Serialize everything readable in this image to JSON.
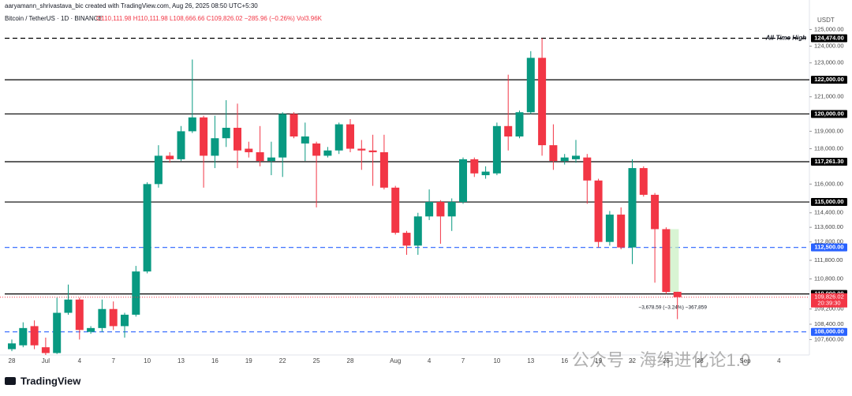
{
  "chart_data": {
    "type": "candlestick",
    "header": {
      "creator": "aaryamann_shrivastava_bic created with TradingView.com, Aug 26, 2025 08:50 UTC+5:30",
      "symbol": "Bitcoin / TetherUS · 1D · BINANCE",
      "ohlc": "O110,111.98 H110,111.98 L108,666.66 C109,826.02 −285.96 (−0.26%) Vol3.96K"
    },
    "currency": "USDT",
    "log_scale": true,
    "up_color": "#089981",
    "down_color": "#f23645",
    "categories": [
      "28",
      null,
      null,
      "Jul",
      null,
      null,
      "4",
      null,
      null,
      "7",
      null,
      null,
      "10",
      null,
      null,
      "13",
      null,
      null,
      "16",
      null,
      null,
      "19",
      null,
      null,
      "22",
      null,
      null,
      "25",
      null,
      null,
      "28",
      null,
      null,
      null,
      "Aug",
      null,
      null,
      "4",
      null,
      null,
      "7",
      null,
      null,
      "10",
      null,
      null,
      "13",
      null,
      null,
      "16",
      null,
      null,
      "19",
      null,
      null,
      "22",
      null,
      null,
      "25",
      null,
      null,
      "28",
      null,
      null,
      null,
      "Sep",
      null,
      null,
      "4"
    ],
    "open": [
      107100,
      107300,
      108300,
      107200,
      106900,
      109000,
      109700,
      108000,
      108200,
      109200,
      108300,
      108900,
      111200,
      116000,
      117600,
      117400,
      119000,
      119800,
      117600,
      118600,
      119200,
      118000,
      117800,
      117300,
      117500,
      120000,
      118300,
      118300,
      117600,
      117900,
      119400,
      118000,
      117900,
      117800,
      115800,
      113300,
      112600,
      114200,
      115000,
      114200,
      115000,
      117400,
      116500,
      116600,
      119300,
      118700,
      120100,
      123300,
      118200,
      117300,
      117400,
      117500,
      116200,
      112800,
      114300,
      112500,
      116900,
      115400,
      113500,
      110111.98,
      null,
      null,
      null,
      null,
      null,
      null,
      null,
      null,
      null
    ],
    "high": [
      107600,
      108500,
      108600,
      107700,
      109800,
      110500,
      109800,
      108300,
      109700,
      109600,
      109000,
      111500,
      116100,
      118200,
      117800,
      119300,
      123200,
      119900,
      119900,
      120800,
      120600,
      118400,
      119300,
      118400,
      120100,
      120100,
      119500,
      118400,
      118100,
      119500,
      119700,
      118500,
      118800,
      118800,
      115900,
      113400,
      114400,
      115700,
      115100,
      115200,
      117500,
      117500,
      117000,
      119500,
      122300,
      120200,
      123700,
      124474,
      119400,
      117700,
      118500,
      117700,
      116300,
      114500,
      114700,
      117400,
      117000,
      115500,
      113600,
      110111.98,
      null,
      null,
      null,
      null,
      null,
      null,
      null,
      null,
      null
    ],
    "low": [
      107000,
      107200,
      107100,
      106800,
      106850,
      108900,
      107600,
      107900,
      108000,
      108100,
      107700,
      108800,
      111100,
      115800,
      117200,
      117300,
      118900,
      115800,
      116900,
      118100,
      116900,
      117500,
      117000,
      116500,
      116400,
      118600,
      117300,
      114700,
      117500,
      117700,
      117800,
      116800,
      115900,
      115700,
      113200,
      112100,
      112100,
      114000,
      112700,
      113400,
      114900,
      116400,
      116300,
      116500,
      117900,
      118600,
      120000,
      117600,
      116800,
      117100,
      117200,
      114900,
      112500,
      112600,
      112400,
      111600,
      115300,
      110600,
      110000,
      108666.66,
      null,
      null,
      null,
      null,
      null,
      null,
      null,
      null,
      null
    ],
    "close": [
      107400,
      108200,
      107300,
      106900,
      109000,
      109700,
      108100,
      108200,
      109200,
      108300,
      108900,
      111200,
      116000,
      117600,
      117400,
      119000,
      119800,
      117600,
      118600,
      119200,
      117900,
      117800,
      117300,
      117500,
      120000,
      118700,
      118700,
      117600,
      117900,
      119400,
      118000,
      117900,
      117800,
      115800,
      113300,
      112600,
      114200,
      115000,
      114200,
      115000,
      117400,
      116600,
      116700,
      119300,
      118700,
      120100,
      123300,
      118200,
      117300,
      117500,
      117600,
      116200,
      112800,
      114300,
      112500,
      116900,
      115400,
      113500,
      110100,
      109826.02,
      null,
      null,
      null,
      null,
      null,
      null,
      null,
      null,
      null
    ],
    "ylim": [
      106800,
      125450
    ],
    "yticks": [
      {
        "value": 125000,
        "label": "125,000.00"
      },
      {
        "value": 124000,
        "label": "124,000.00"
      },
      {
        "value": 123000,
        "label": "123,000.00"
      },
      {
        "value": 121000,
        "label": "121,000.00"
      },
      {
        "value": 119000,
        "label": "119,000.00"
      },
      {
        "value": 118000,
        "label": "118,000.00"
      },
      {
        "value": 116000,
        "label": "116,000.00"
      },
      {
        "value": 114400,
        "label": "114,400.00"
      },
      {
        "value": 113600,
        "label": "113,600.00"
      },
      {
        "value": 112800,
        "label": "112,800.00"
      },
      {
        "value": 111800,
        "label": "111,800.00"
      },
      {
        "value": 110800,
        "label": "110,800.00"
      },
      {
        "value": 109200,
        "label": "109,200.00"
      },
      {
        "value": 108400,
        "label": "108,400.00"
      },
      {
        "value": 107600,
        "label": "107,600.00"
      }
    ],
    "levels": [
      {
        "value": 124474,
        "label": "124,474.00",
        "note": "All-Time High",
        "color": "#000000",
        "dashed": true
      },
      {
        "value": 122000,
        "label": "122,000.00",
        "color": "#000000",
        "dashed": false
      },
      {
        "value": 120000,
        "label": "120,000.00",
        "color": "#000000",
        "dashed": false
      },
      {
        "value": 117261.3,
        "label": "117,261.30",
        "color": "#000000",
        "dashed": false
      },
      {
        "value": 115000,
        "label": "115,000.00",
        "color": "#000000",
        "dashed": false
      },
      {
        "value": 112500,
        "label": "112,500.00",
        "color": "#2962ff",
        "dashed": true
      },
      {
        "value": 110000,
        "label": "110,000.00",
        "color": "#000000",
        "dashed": false
      },
      {
        "value": 108000,
        "label": "108,000.00",
        "color": "#2962ff",
        "dashed": true
      }
    ],
    "last_price": {
      "value": 109826.02,
      "label": "109,826.02",
      "countdown": "20:39:30"
    },
    "measurement": "−3,678.59 (−3.24%) −367,859",
    "watermark": "公众号 · 海绵进化论1.0",
    "logo": "TradingView"
  }
}
